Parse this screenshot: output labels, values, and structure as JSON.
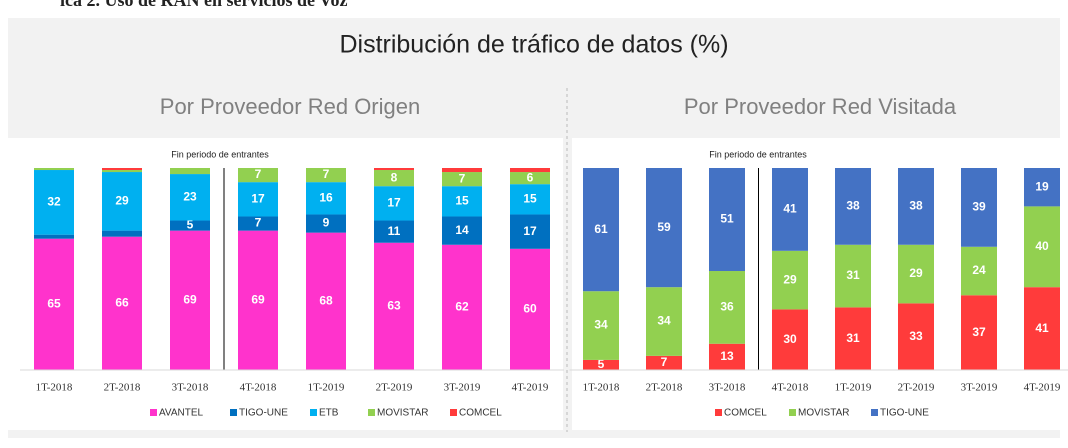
{
  "caption": "ica 2. Uso de RAN en servicios de Voz",
  "title": "Distribución de tráfico de datos (%)",
  "chart_data": [
    {
      "type": "bar",
      "stacked": true,
      "title": "Por Proveedor Red Origen",
      "plot_title": "Fin periodo de entrantes",
      "categories": [
        "1T-2018",
        "2T-2018",
        "3T-2018",
        "4T-2018",
        "1T-2019",
        "2T-2019",
        "3T-2019",
        "4T-2019"
      ],
      "ylim": [
        0,
        100
      ],
      "series": [
        {
          "name": "AVANTEL",
          "color": "#ff33cc",
          "values": [
            65,
            66,
            69,
            69,
            68,
            63,
            62,
            60
          ]
        },
        {
          "name": "TIGO-UNE",
          "color": "#0070c0",
          "values": [
            2,
            3,
            5,
            7,
            9,
            11,
            14,
            17
          ]
        },
        {
          "name": "ETB",
          "color": "#00b0f0",
          "values": [
            32,
            29,
            23,
            17,
            16,
            17,
            15,
            15
          ]
        },
        {
          "name": "MOVISTAR",
          "color": "#92d050",
          "values": [
            1,
            1,
            3,
            7,
            7,
            8,
            7,
            6
          ]
        },
        {
          "name": "COMCEL",
          "color": "#ff3b3b",
          "values": [
            0,
            1,
            0,
            0,
            0,
            1,
            2,
            2
          ]
        }
      ]
    },
    {
      "type": "bar",
      "stacked": true,
      "title": "Por Proveedor Red Visitada",
      "plot_title": "Fin periodo de entrantes",
      "categories": [
        "1T-2018",
        "2T-2018",
        "3T-2018",
        "4T-2018",
        "1T-2019",
        "2T-2019",
        "3T-2019",
        "4T-2019"
      ],
      "ylim": [
        0,
        100
      ],
      "series": [
        {
          "name": "COMCEL",
          "color": "#ff3b3b",
          "values": [
            5,
            7,
            13,
            30,
            31,
            33,
            37,
            41
          ]
        },
        {
          "name": "MOVISTAR",
          "color": "#92d050",
          "values": [
            34,
            34,
            36,
            29,
            31,
            29,
            24,
            40
          ]
        },
        {
          "name": "TIGO-UNE",
          "color": "#4472c4",
          "values": [
            61,
            59,
            51,
            41,
            38,
            38,
            39,
            19
          ]
        }
      ]
    }
  ]
}
